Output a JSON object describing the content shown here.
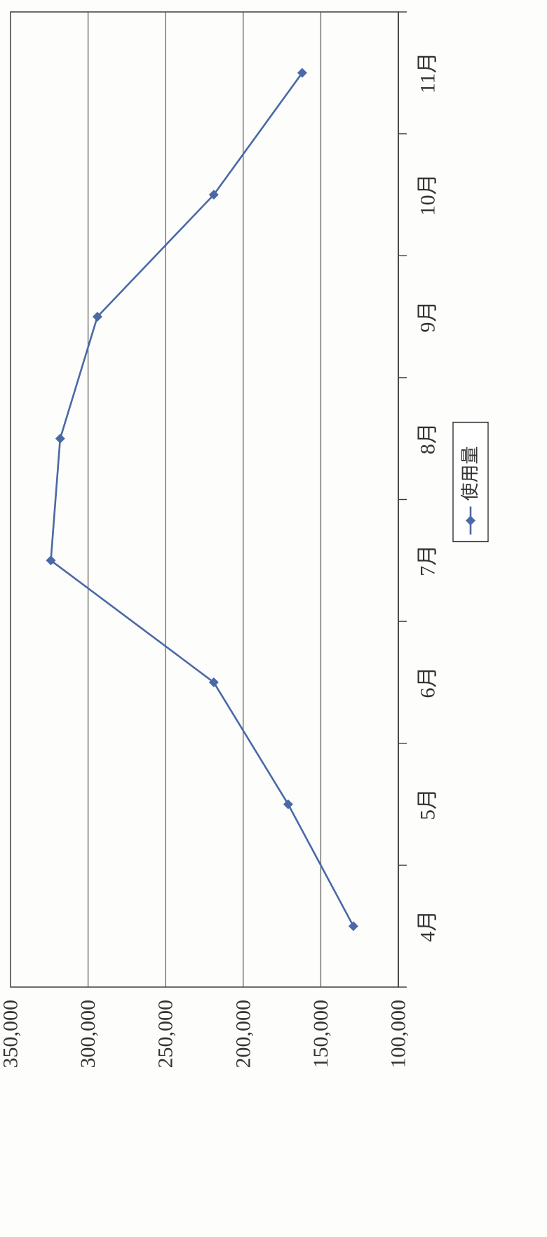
{
  "chart_data": {
    "type": "line",
    "categories": [
      "4月",
      "5月",
      "6月",
      "7月",
      "8月",
      "9月",
      "10月",
      "11月"
    ],
    "series": [
      {
        "name": "使用量",
        "values": [
          129000,
          171000,
          219000,
          324000,
          318000,
          294000,
          219000,
          162000
        ],
        "color": "#4a69a6"
      }
    ],
    "yticks": [
      "100,000",
      "150,000",
      "200,000",
      "250,000",
      "300,000",
      "350,000"
    ],
    "ylim": [
      100000,
      350000
    ],
    "grid": true,
    "legend": "bottom"
  }
}
